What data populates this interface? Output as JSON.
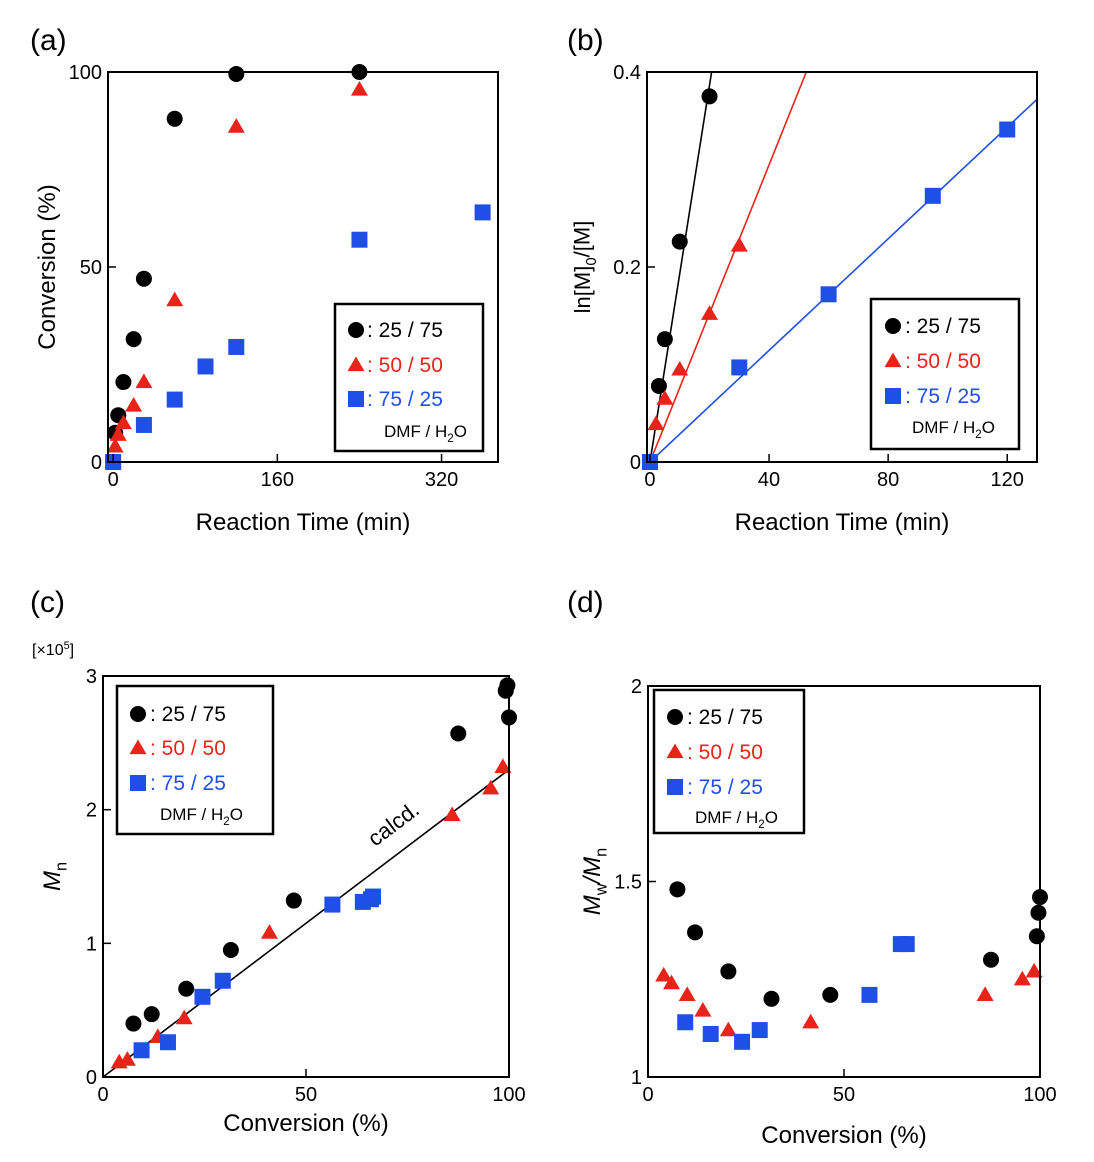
{
  "colors": {
    "black": "#000000",
    "red": "#e8241a",
    "blue": "#1f4fe6"
  },
  "chart_data": [
    {
      "panel_label": "(a)",
      "type": "scatter",
      "xlabel": "Reaction Time (min)",
      "ylabel": "Conversion (%)",
      "xlim": [
        -5,
        375
      ],
      "ylim": [
        0,
        100
      ],
      "xticks": [
        {
          "v": 0,
          "label": "0"
        },
        {
          "v": 160,
          "label": "160"
        },
        {
          "v": 320,
          "label": "320"
        }
      ],
      "yticks": [
        {
          "v": 0,
          "label": "0"
        },
        {
          "v": 50,
          "label": "50"
        },
        {
          "v": 100,
          "label": "100"
        }
      ],
      "legend": {
        "position": "lower-right",
        "entries": [
          ": 25 / 75",
          ": 50 / 50",
          ": 75 / 25"
        ],
        "note": "DMF / H",
        "note_sub": "2",
        "note_end": "O"
      },
      "series": [
        {
          "name": "25 / 75",
          "marker": "circle",
          "color": "#000000",
          "x": [
            0,
            2,
            5,
            10,
            20,
            30,
            60,
            120,
            240
          ],
          "y": [
            0,
            7.5,
            12,
            20.5,
            31.5,
            47,
            88,
            99.5,
            100
          ]
        },
        {
          "name": "50 / 50",
          "marker": "triangle",
          "color": "#e8241a",
          "x": [
            0,
            2,
            5,
            10,
            20,
            30,
            60,
            120,
            240
          ],
          "y": [
            0,
            4,
            7,
            10,
            14.5,
            20.5,
            41.5,
            86,
            95.5
          ]
        },
        {
          "name": "75 / 25",
          "marker": "square",
          "color": "#1f4fe6",
          "x": [
            0,
            30,
            60,
            90,
            120,
            240,
            360
          ],
          "y": [
            0,
            9.5,
            16,
            24.5,
            29.5,
            57,
            64
          ]
        }
      ]
    },
    {
      "panel_label": "(b)",
      "type": "scatter",
      "xlabel": "Reaction Time (min)",
      "ylabel": "ln[M]0/[M]",
      "xlim": [
        -1,
        130
      ],
      "ylim": [
        0,
        0.4
      ],
      "xticks": [
        {
          "v": 0,
          "label": "0"
        },
        {
          "v": 40,
          "label": "40"
        },
        {
          "v": 80,
          "label": "80"
        },
        {
          "v": 120,
          "label": "120"
        }
      ],
      "yticks": [
        {
          "v": 0,
          "label": "0"
        },
        {
          "v": 0.2,
          "label": "0.2"
        },
        {
          "v": 0.4,
          "label": "0.4"
        }
      ],
      "legend": {
        "position": "lower-right",
        "entries": [
          ": 25 / 75",
          ": 50 / 50",
          ": 75 / 25"
        ],
        "note": "DMF / H",
        "note_sub": "2",
        "note_end": "O"
      },
      "series": [
        {
          "name": "25 / 75",
          "marker": "circle",
          "color": "#000000",
          "x": [
            0,
            3,
            5,
            10,
            20
          ],
          "y": [
            0,
            0.078,
            0.126,
            0.226,
            0.375
          ],
          "fit": {
            "x": [
              0,
              20.7
            ],
            "y": [
              0,
              0.4
            ]
          }
        },
        {
          "name": "50 / 50",
          "marker": "triangle",
          "color": "#e8241a",
          "x": [
            0,
            2,
            5,
            10,
            20,
            30
          ],
          "y": [
            0,
            0.039,
            0.065,
            0.095,
            0.152,
            0.222
          ],
          "fit": {
            "x": [
              0,
              52.5
            ],
            "y": [
              0,
              0.4
            ]
          }
        },
        {
          "name": "75 / 25",
          "marker": "square",
          "color": "#1f4fe6",
          "x": [
            0,
            30,
            60,
            95,
            120
          ],
          "y": [
            0,
            0.097,
            0.172,
            0.273,
            0.341
          ],
          "fit": {
            "x": [
              0,
              130
            ],
            "y": [
              0,
              0.372
            ]
          }
        }
      ]
    },
    {
      "panel_label": "(c)",
      "type": "scatter",
      "xlabel": "Conversion (%)",
      "ylabel": "M",
      "ylabel_sub": "n",
      "scale_label": "[×10",
      "scale_sup": "5",
      "scale_end": "]",
      "xlim": [
        0,
        100
      ],
      "ylim": [
        0,
        3
      ],
      "xticks": [
        {
          "v": 0,
          "label": "0"
        },
        {
          "v": 50,
          "label": "50"
        },
        {
          "v": 100,
          "label": "100"
        }
      ],
      "yticks": [
        {
          "v": 0,
          "label": "0"
        },
        {
          "v": 1,
          "label": "1"
        },
        {
          "v": 2,
          "label": "2"
        },
        {
          "v": 3,
          "label": "3"
        }
      ],
      "legend": {
        "position": "upper-left",
        "entries": [
          ": 25 / 75",
          ": 50 / 50",
          ": 75 / 25"
        ],
        "note": "DMF / H",
        "note_sub": "2",
        "note_end": "O"
      },
      "annotation": "calcd.",
      "calc_line": {
        "x": [
          0,
          100
        ],
        "y": [
          0,
          2.3
        ]
      },
      "series": [
        {
          "name": "25 / 75",
          "marker": "circle",
          "color": "#000000",
          "x": [
            7.5,
            12,
            20.5,
            31.5,
            47,
            87.5,
            99.2,
            99.6,
            100
          ],
          "y": [
            0.4,
            0.47,
            0.66,
            0.95,
            1.32,
            2.57,
            2.89,
            2.93,
            2.69
          ]
        },
        {
          "name": "50 / 50",
          "marker": "triangle",
          "color": "#e8241a",
          "x": [
            4,
            6,
            13.5,
            20,
            41,
            86,
            95.5,
            98.5
          ],
          "y": [
            0.11,
            0.13,
            0.3,
            0.44,
            1.08,
            1.96,
            2.16,
            2.32
          ]
        },
        {
          "name": "75 / 25",
          "marker": "square",
          "color": "#1f4fe6",
          "x": [
            9.5,
            16,
            24.5,
            29.5,
            56.5,
            64,
            66,
            66.5
          ],
          "y": [
            0.2,
            0.26,
            0.6,
            0.72,
            1.29,
            1.31,
            1.33,
            1.35
          ]
        }
      ]
    },
    {
      "panel_label": "(d)",
      "type": "scatter",
      "xlabel": "Conversion (%)",
      "ylabel": "M",
      "ylabel_sub1": "w",
      "ylabel_mid": "/M",
      "ylabel_sub2": "n",
      "xlim": [
        0,
        100
      ],
      "ylim": [
        1,
        2
      ],
      "xticks": [
        {
          "v": 0,
          "label": "0"
        },
        {
          "v": 50,
          "label": "50"
        },
        {
          "v": 100,
          "label": "100"
        }
      ],
      "yticks": [
        {
          "v": 1,
          "label": "1"
        },
        {
          "v": 1.5,
          "label": "1.5"
        },
        {
          "v": 2,
          "label": "2"
        }
      ],
      "legend": {
        "position": "upper-left",
        "entries": [
          ": 25 / 75",
          ": 50 / 50",
          ": 75 / 25"
        ],
        "note": "DMF / H",
        "note_sub": "2",
        "note_end": "O"
      },
      "series": [
        {
          "name": "25 / 75",
          "marker": "circle",
          "color": "#000000",
          "x": [
            7.5,
            12,
            20.5,
            31.5,
            46.5,
            87.5,
            99.2,
            99.6,
            100
          ],
          "y": [
            1.48,
            1.37,
            1.27,
            1.2,
            1.21,
            1.3,
            1.36,
            1.42,
            1.46
          ]
        },
        {
          "name": "50 / 50",
          "marker": "triangle",
          "color": "#e8241a",
          "x": [
            4,
            6,
            10,
            14,
            20.5,
            41.5,
            86,
            95.5,
            98.5
          ],
          "y": [
            1.26,
            1.24,
            1.21,
            1.17,
            1.12,
            1.14,
            1.21,
            1.25,
            1.27
          ]
        },
        {
          "name": "75 / 25",
          "marker": "square",
          "color": "#1f4fe6",
          "x": [
            9.5,
            16,
            24,
            28.5,
            56.5,
            64.5,
            66
          ],
          "y": [
            1.14,
            1.11,
            1.09,
            1.12,
            1.21,
            1.34,
            1.34
          ]
        }
      ]
    }
  ]
}
